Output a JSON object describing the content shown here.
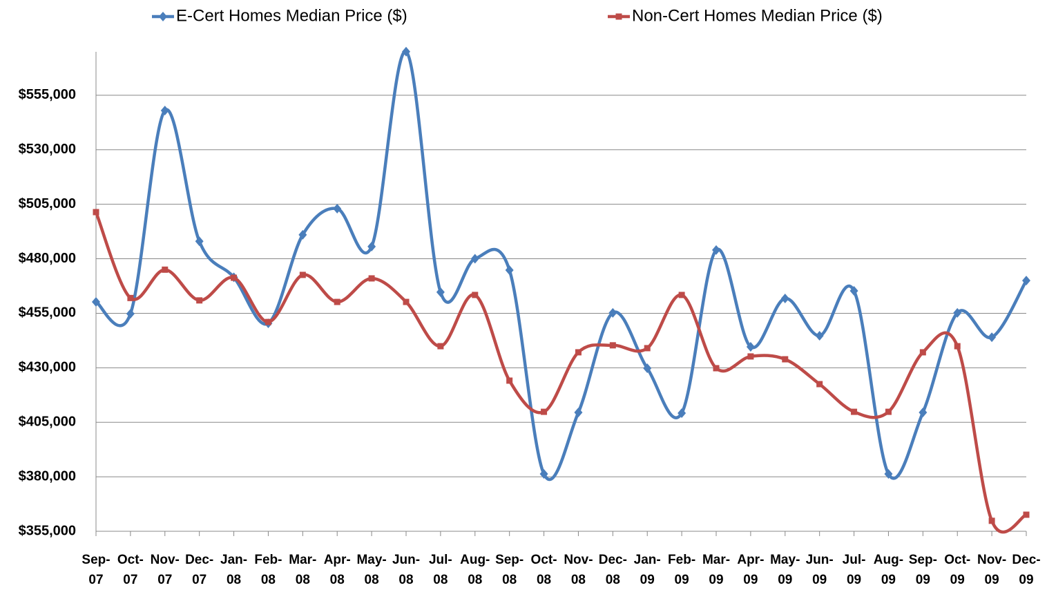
{
  "chart_data": {
    "type": "line",
    "categories": [
      "Sep-07",
      "Oct-07",
      "Nov-07",
      "Dec-07",
      "Jan-08",
      "Feb-08",
      "Mar-08",
      "Apr-08",
      "May-08",
      "Jun-08",
      "Jul-08",
      "Aug-08",
      "Sep-08",
      "Oct-08",
      "Nov-08",
      "Dec-08",
      "Jan-09",
      "Feb-09",
      "Mar-09",
      "Apr-09",
      "May-09",
      "Jun-09",
      "Jul-09",
      "Aug-09",
      "Sep-09",
      "Oct-09",
      "Nov-09",
      "Dec-09"
    ],
    "series": [
      {
        "name": "E-Cert Homes Median Price ($)",
        "color": "#4a7ebb",
        "marker": "diamond",
        "values": [
          460200,
          454800,
          548000,
          488000,
          471500,
          450400,
          491000,
          503000,
          485600,
          575000,
          464700,
          480000,
          474800,
          381300,
          409500,
          455200,
          429800,
          409200,
          484000,
          439600,
          461800,
          444700,
          465300,
          381300,
          409500,
          455200,
          444000,
          470000
        ]
      },
      {
        "name": "Non-Cert Homes Median Price ($)",
        "color": "#be4b48",
        "marker": "square",
        "values": [
          501400,
          462000,
          475000,
          460900,
          471300,
          451000,
          472600,
          460200,
          471000,
          460200,
          439900,
          463400,
          424100,
          409800,
          437100,
          440300,
          439000,
          463400,
          429800,
          435200,
          433900,
          422500,
          409800,
          409800,
          437100,
          439900,
          359800,
          362600
        ]
      }
    ],
    "ylim": [
      355000,
      580000
    ],
    "yticks": [
      {
        "value": 355000,
        "label": "$355,000"
      },
      {
        "value": 380000,
        "label": "$380,000"
      },
      {
        "value": 405000,
        "label": "$405,000"
      },
      {
        "value": 430000,
        "label": "$430,000"
      },
      {
        "value": 455000,
        "label": "$455,000"
      },
      {
        "value": 480000,
        "label": "$480,000"
      },
      {
        "value": 505000,
        "label": "$505,000"
      },
      {
        "value": 530000,
        "label": "$530,000"
      },
      {
        "value": 555000,
        "label": "$555,000"
      }
    ],
    "grid": true,
    "smooth": true,
    "legend": "top"
  }
}
